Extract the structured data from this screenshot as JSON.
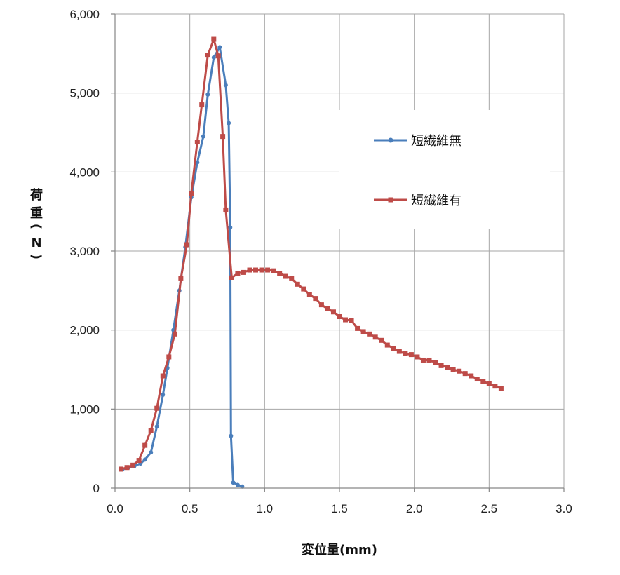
{
  "chart_data": {
    "type": "line",
    "title": "",
    "xlabel": "変位量(mm)",
    "ylabel_chars": [
      "荷",
      "重",
      "(",
      "N",
      ")"
    ],
    "xlim": [
      0,
      3.0
    ],
    "ylim": [
      0,
      6000
    ],
    "x_ticks": [
      0,
      0.5,
      1.0,
      1.5,
      2.0,
      2.5,
      3.0
    ],
    "x_tick_labels": [
      "0.0",
      "0.5",
      "1.0",
      "1.5",
      "2.0",
      "2.5",
      "3.0"
    ],
    "y_ticks": [
      0,
      1000,
      2000,
      3000,
      4000,
      5000,
      6000
    ],
    "y_tick_labels": [
      "0",
      "1,000",
      "2,000",
      "3,000",
      "4,000",
      "5,000",
      "6,000"
    ],
    "grid": true,
    "legend_position": "right",
    "series": [
      {
        "name": "短繊維無",
        "color": "#4a7ebb",
        "marker": "circle",
        "points": [
          [
            0.05,
            240
          ],
          [
            0.09,
            260
          ],
          [
            0.13,
            280
          ],
          [
            0.17,
            310
          ],
          [
            0.2,
            360
          ],
          [
            0.24,
            450
          ],
          [
            0.28,
            780
          ],
          [
            0.32,
            1180
          ],
          [
            0.35,
            1520
          ],
          [
            0.39,
            2000
          ],
          [
            0.43,
            2500
          ],
          [
            0.47,
            3050
          ],
          [
            0.51,
            3680
          ],
          [
            0.55,
            4120
          ],
          [
            0.59,
            4450
          ],
          [
            0.62,
            4980
          ],
          [
            0.66,
            5450
          ],
          [
            0.7,
            5580
          ],
          [
            0.74,
            5100
          ],
          [
            0.76,
            4620
          ],
          [
            0.77,
            3300
          ],
          [
            0.775,
            660
          ],
          [
            0.79,
            70
          ],
          [
            0.82,
            40
          ],
          [
            0.85,
            20
          ]
        ]
      },
      {
        "name": "短繊維有",
        "color": "#be4b48",
        "marker": "square",
        "points": [
          [
            0.04,
            240
          ],
          [
            0.08,
            260
          ],
          [
            0.12,
            290
          ],
          [
            0.16,
            350
          ],
          [
            0.2,
            540
          ],
          [
            0.24,
            730
          ],
          [
            0.28,
            1010
          ],
          [
            0.32,
            1420
          ],
          [
            0.36,
            1660
          ],
          [
            0.4,
            1950
          ],
          [
            0.44,
            2650
          ],
          [
            0.48,
            3080
          ],
          [
            0.51,
            3730
          ],
          [
            0.55,
            4380
          ],
          [
            0.58,
            4850
          ],
          [
            0.62,
            5480
          ],
          [
            0.66,
            5680
          ],
          [
            0.69,
            5470
          ],
          [
            0.72,
            4450
          ],
          [
            0.74,
            3520
          ],
          [
            0.78,
            2660
          ],
          [
            0.82,
            2720
          ],
          [
            0.86,
            2730
          ],
          [
            0.9,
            2760
          ],
          [
            0.94,
            2760
          ],
          [
            0.98,
            2760
          ],
          [
            1.02,
            2760
          ],
          [
            1.06,
            2750
          ],
          [
            1.1,
            2720
          ],
          [
            1.14,
            2680
          ],
          [
            1.18,
            2650
          ],
          [
            1.22,
            2580
          ],
          [
            1.26,
            2520
          ],
          [
            1.3,
            2450
          ],
          [
            1.34,
            2400
          ],
          [
            1.38,
            2320
          ],
          [
            1.42,
            2270
          ],
          [
            1.46,
            2230
          ],
          [
            1.5,
            2170
          ],
          [
            1.54,
            2130
          ],
          [
            1.58,
            2120
          ],
          [
            1.62,
            2020
          ],
          [
            1.66,
            1980
          ],
          [
            1.7,
            1950
          ],
          [
            1.74,
            1910
          ],
          [
            1.78,
            1870
          ],
          [
            1.82,
            1810
          ],
          [
            1.86,
            1770
          ],
          [
            1.9,
            1730
          ],
          [
            1.94,
            1700
          ],
          [
            1.98,
            1690
          ],
          [
            2.02,
            1660
          ],
          [
            2.06,
            1620
          ],
          [
            2.1,
            1620
          ],
          [
            2.14,
            1590
          ],
          [
            2.18,
            1550
          ],
          [
            2.22,
            1530
          ],
          [
            2.26,
            1500
          ],
          [
            2.3,
            1480
          ],
          [
            2.34,
            1450
          ],
          [
            2.38,
            1420
          ],
          [
            2.42,
            1380
          ],
          [
            2.46,
            1350
          ],
          [
            2.5,
            1320
          ],
          [
            2.54,
            1290
          ],
          [
            2.58,
            1260
          ]
        ]
      }
    ]
  }
}
